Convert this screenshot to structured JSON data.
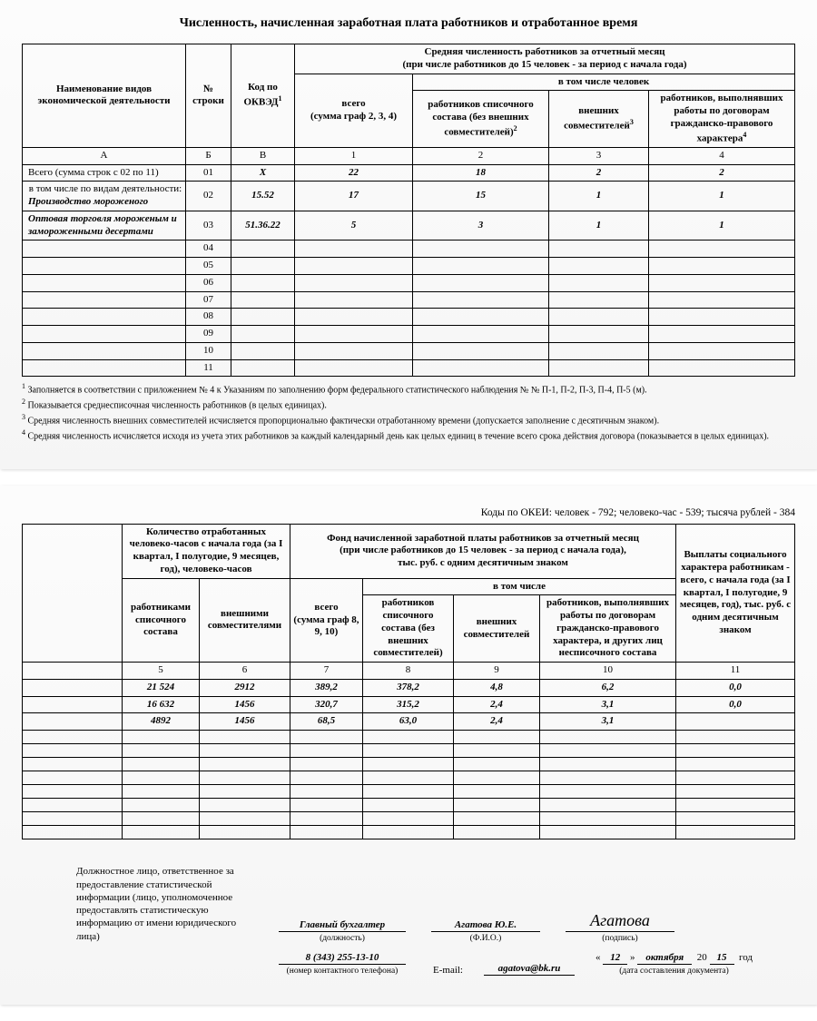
{
  "title": "Численность, начисленная заработная плата работников и отработанное время",
  "t1": {
    "h_name": "Наименование видов экономической деятельности",
    "h_row": "№ строки",
    "h_code": "Код по ОКВЭД",
    "h_top": "Средняя численность работников за отчетный месяц",
    "h_top2": "(при числе работников до 15 человек - за период с начала года)",
    "h_total": "всего",
    "h_total2": "(сумма граф 2, 3, 4)",
    "h_incl": "в том числе человек",
    "h_c2a": "работников списочного состава (без внешних совместителей)",
    "h_c3a": "внешних совместителей",
    "h_c4a": "работников, выполнявших работы по договорам гражданско-правового характера",
    "lab_A": "А",
    "lab_B": "Б",
    "lab_V": "В",
    "lab_1": "1",
    "lab_2": "2",
    "lab_3": "3",
    "lab_4": "4",
    "r1_name": "Всего (сумма строк с 02 по 11)",
    "r1": {
      "row": "01",
      "code": "X",
      "c1": "22",
      "c2": "18",
      "c3": "2",
      "c4": "2"
    },
    "r2_intro": "в том числе по видам деятельности:",
    "r2_name": "Производство мороженого",
    "r2": {
      "row": "02",
      "code": "15.52",
      "c1": "17",
      "c2": "15",
      "c3": "1",
      "c4": "1"
    },
    "r3_name": "Оптовая торговля мороженым и замороженными десертами",
    "r3": {
      "row": "03",
      "code": "51.36.22",
      "c1": "5",
      "c2": "3",
      "c3": "1",
      "c4": "1"
    },
    "empty_rows": [
      "04",
      "05",
      "06",
      "07",
      "08",
      "09",
      "10",
      "11"
    ]
  },
  "fn1": "Заполняется в соответствии с приложением № 4 к Указаниям по заполнению форм федерального статистического наблюдения № № П-1, П-2, П-3, П-4, П-5 (м).",
  "fn2": "Показывается среднесписочная численность работников (в целых единицах).",
  "fn3": "Средняя численность внешних совместителей исчисляется пропорционально фактически отработанному времени (допускается заполнение с десятичным знаком).",
  "fn4": "Средняя численность исчисляется исходя из учета этих работников за каждый календарный день как целых единиц в течение всего срока действия договора (показывается в целых единицах).",
  "okei": "Коды по ОКЕИ: человек - 792; человеко-час - 539; тысяча рублей - 384",
  "t2": {
    "h_hours_top": "Количество отработанных человеко-часов с начала года (за I квартал, I полугодие, 9 месяцев, год), человеко-часов",
    "h_hours_c5": "работниками списочного состава",
    "h_hours_c6": "внешними совместителями",
    "h_pay_top": "Фонд начисленной заработной платы работников за отчетный месяц",
    "h_pay_top2": "(при числе работников до 15 человек - за период с начала года),",
    "h_pay_top3": "тыс. руб. с одним десятичным знаком",
    "h_c7a": "всего",
    "h_c7b": "(сумма граф 8, 9, 10)",
    "h_incl": "в том числе",
    "h_c8": "работников списочного состава (без внешних совместителей)",
    "h_c9": "внешних совместителей",
    "h_c10": "работников, выполнявших работы по договорам гражданско-правового характера, и других лиц несписочного состава",
    "h_c11": "Выплаты социального характера работникам - всего, с начала года (за I квартал, I полугодие, 9 месяцев, год), тыс. руб. с одним десятичным знаком",
    "lab_5": "5",
    "lab_6": "6",
    "lab_7": "7",
    "lab_8": "8",
    "lab_9": "9",
    "lab_10": "10",
    "lab_11": "11",
    "r1": {
      "c5": "21 524",
      "c6": "2912",
      "c7": "389,2",
      "c8": "378,2",
      "c9": "4,8",
      "c10": "6,2",
      "c11": "0,0"
    },
    "r2": {
      "c5": "16 632",
      "c6": "1456",
      "c7": "320,7",
      "c8": "315,2",
      "c9": "2,4",
      "c10": "3,1",
      "c11": "0,0"
    },
    "r3": {
      "c5": "4892",
      "c6": "1456",
      "c7": "68,5",
      "c8": "63,0",
      "c9": "2,4",
      "c10": "3,1",
      "c11": ""
    }
  },
  "sig": {
    "intro": "Должностное лицо, ответственное за предоставление статистической информации (лицо, уполномоченное предоставлять статистическую информацию от имени юридического лица)",
    "position": "Главный бухгалтер",
    "position_lab": "(должность)",
    "fio": "Агатова Ю.Е.",
    "fio_lab": "(Ф.И.О.)",
    "sign": "Агатова",
    "sign_lab": "(подпись)",
    "phone": "8 (343) 255-13-10",
    "phone_lab": "(номер контактного телефона)",
    "email_lab": "E-mail:",
    "email": "agatova@bk.ru",
    "date_open": "«",
    "date_d": "12",
    "date_mid": "»",
    "date_m": "октября",
    "date_y1": "20",
    "date_y2": "15",
    "date_y3": "год",
    "date_lab": "(дата составления документа)"
  }
}
